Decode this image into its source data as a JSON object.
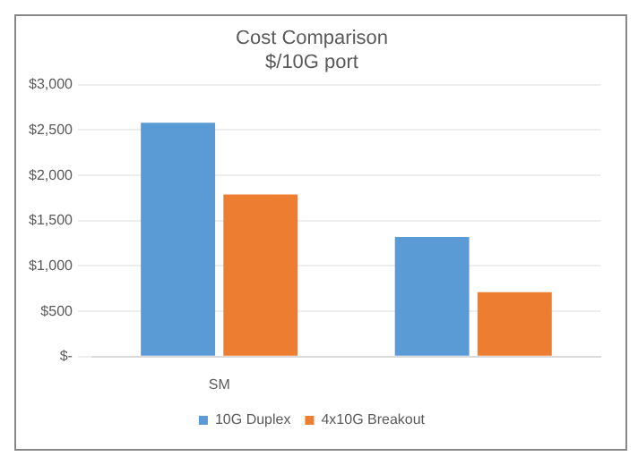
{
  "chart_data": {
    "type": "bar",
    "title": "Cost Comparison",
    "subtitle": "$/10G port",
    "categories": [
      "SM",
      null
    ],
    "series": [
      {
        "name": "10G Duplex",
        "color": "#5b9bd5",
        "values": [
          2580,
          1320
        ]
      },
      {
        "name": "4x10G Breakout",
        "color": "#ed7d31",
        "values": [
          1790,
          710
        ]
      }
    ],
    "ylim": [
      0,
      3000
    ],
    "yticks": [
      {
        "value": 0,
        "label": "$-"
      },
      {
        "value": 500,
        "label": "$500"
      },
      {
        "value": 1000,
        "label": "$1,000"
      },
      {
        "value": 1500,
        "label": "$1,500"
      },
      {
        "value": 2000,
        "label": "$2,000"
      },
      {
        "value": 2500,
        "label": "$2,500"
      },
      {
        "value": 3000,
        "label": "$3,000"
      }
    ],
    "grid": "y",
    "legend": "bottom"
  }
}
